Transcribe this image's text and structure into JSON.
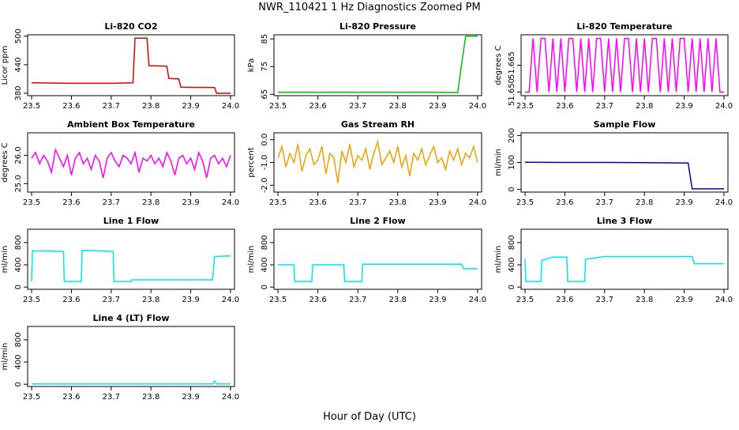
{
  "title": "NWR_110421  1 Hz Diagnostics Zoomed PM",
  "x_label": "Hour of Day (UTC)",
  "chart_data": [
    {
      "type": "line",
      "title": "Li-820 CO2",
      "y_label": "Licor ppm",
      "color": "#e00000",
      "x": [
        23.5,
        23.6,
        23.7,
        23.755,
        23.76,
        23.79,
        23.795,
        23.84,
        23.845,
        23.87,
        23.875,
        23.96,
        23.965,
        24.0
      ],
      "values": [
        402,
        401,
        401,
        402,
        496,
        496,
        438,
        437,
        411,
        410,
        393,
        392,
        380,
        380
      ],
      "xlim": [
        23.49,
        24.01
      ],
      "ylim": [
        375,
        503
      ],
      "yticks": [
        380,
        440,
        500
      ],
      "xticks": [
        23.5,
        23.6,
        23.7,
        23.8,
        23.9,
        {
          "value": 24,
          "label": "24.0"
        }
      ]
    },
    {
      "type": "line",
      "title": "Li-820 Pressure",
      "y_label": "kPa",
      "color": "#00c000",
      "x": [
        23.5,
        23.7,
        23.9,
        23.95,
        23.96,
        23.97,
        24.0
      ],
      "values": [
        65.7,
        65.7,
        65.7,
        65.6,
        76,
        86,
        86
      ],
      "xlim": [
        23.49,
        24.01
      ],
      "ylim": [
        64.5,
        86.5
      ],
      "yticks": [
        65,
        75,
        85
      ],
      "xticks": [
        23.5,
        23.6,
        23.7,
        23.8,
        23.9,
        {
          "value": 24,
          "label": "24.0"
        }
      ]
    },
    {
      "type": "line",
      "title": "Li-820 Temperature",
      "y_label": "degrees C",
      "color": "#ff00ff",
      "x": [
        23.5,
        23.51,
        23.52,
        23.53,
        23.54,
        23.55,
        23.56,
        23.57,
        23.58,
        23.59,
        23.6,
        23.61,
        23.62,
        23.63,
        23.64,
        23.65,
        23.66,
        23.67,
        23.68,
        23.69,
        23.7,
        23.71,
        23.72,
        23.73,
        23.74,
        23.75,
        23.76,
        23.77,
        23.78,
        23.79,
        23.8,
        23.81,
        23.82,
        23.83,
        23.84,
        23.85,
        23.86,
        23.87,
        23.88,
        23.89,
        23.9,
        23.91,
        23.92,
        23.93,
        23.94,
        23.95,
        23.96,
        23.97,
        23.98,
        23.99,
        24.0
      ],
      "values": [
        51.65,
        51.65,
        51.68,
        51.65,
        51.68,
        51.68,
        51.65,
        51.68,
        51.65,
        51.68,
        51.65,
        51.68,
        51.68,
        51.65,
        51.68,
        51.65,
        51.68,
        51.65,
        51.68,
        51.68,
        51.65,
        51.68,
        51.65,
        51.68,
        51.65,
        51.68,
        51.68,
        51.65,
        51.68,
        51.65,
        51.68,
        51.65,
        51.68,
        51.68,
        51.65,
        51.68,
        51.65,
        51.68,
        51.65,
        51.68,
        51.68,
        51.65,
        51.68,
        51.65,
        51.68,
        51.65,
        51.68,
        51.65,
        51.68,
        51.65,
        51.65
      ],
      "xlim": [
        23.49,
        24.01
      ],
      "ylim": [
        51.648,
        51.682
      ],
      "yticks": [
        {
          "value": 51.65,
          "label": "51.650"
        },
        51.665
      ],
      "xticks": [
        23.5,
        23.6,
        23.7,
        23.8,
        23.9,
        {
          "value": 24,
          "label": "24.0"
        }
      ]
    },
    {
      "type": "line",
      "title": "Ambient Box Temperature",
      "y_label": "degrees C",
      "color": "#ff00ff",
      "x": [
        23.5,
        23.51,
        23.52,
        23.53,
        23.54,
        23.55,
        23.56,
        23.57,
        23.58,
        23.59,
        23.6,
        23.61,
        23.62,
        23.63,
        23.64,
        23.65,
        23.66,
        23.67,
        23.68,
        23.69,
        23.7,
        23.71,
        23.72,
        23.73,
        23.74,
        23.75,
        23.76,
        23.77,
        23.78,
        23.79,
        23.8,
        23.81,
        23.82,
        23.83,
        23.84,
        23.85,
        23.86,
        23.87,
        23.88,
        23.89,
        23.9,
        23.91,
        23.92,
        23.93,
        23.94,
        23.95,
        23.96,
        23.97,
        23.98,
        23.99,
        24.0
      ],
      "values": [
        25.9,
        26.1,
        25.7,
        26.0,
        25.8,
        25.4,
        26.2,
        25.9,
        25.6,
        26.0,
        25.3,
        25.9,
        26.1,
        25.7,
        25.9,
        25.5,
        26.0,
        25.8,
        25.2,
        25.9,
        26.1,
        25.8,
        25.6,
        26.0,
        25.9,
        25.7,
        26.1,
        25.4,
        25.9,
        25.8,
        26.0,
        25.7,
        25.9,
        25.6,
        26.1,
        25.8,
        25.3,
        25.9,
        26.0,
        25.7,
        25.9,
        25.5,
        26.1,
        25.8,
        25.2,
        25.9,
        26.0,
        25.7,
        25.9,
        25.6,
        26.0
      ],
      "xlim": [
        23.49,
        24.01
      ],
      "ylim": [
        24.7,
        26.8
      ],
      "yticks": [
        {
          "value": 25,
          "label": "25.0"
        },
        {
          "value": 26,
          "label": "26.0"
        }
      ],
      "xticks": [
        23.5,
        23.6,
        23.7,
        23.8,
        23.9,
        {
          "value": 24,
          "label": "24.0"
        }
      ]
    },
    {
      "type": "line",
      "title": "Gas Stream RH",
      "y_label": "percent",
      "color": "#f0a000",
      "x": [
        23.5,
        23.51,
        23.52,
        23.53,
        23.54,
        23.55,
        23.56,
        23.57,
        23.58,
        23.59,
        23.6,
        23.61,
        23.62,
        23.63,
        23.64,
        23.65,
        23.66,
        23.67,
        23.68,
        23.69,
        23.7,
        23.71,
        23.72,
        23.73,
        23.74,
        23.75,
        23.76,
        23.77,
        23.78,
        23.79,
        23.8,
        23.81,
        23.82,
        23.83,
        23.84,
        23.85,
        23.86,
        23.87,
        23.88,
        23.89,
        23.9,
        23.91,
        23.92,
        23.93,
        23.94,
        23.95,
        23.96,
        23.97,
        23.98,
        23.99,
        24.0
      ],
      "values": [
        -0.8,
        -0.3,
        -1.2,
        -0.6,
        -1.0,
        -0.2,
        -1.4,
        -0.7,
        -0.4,
        -1.1,
        -0.9,
        -0.3,
        -1.5,
        -0.6,
        -0.8,
        -1.9,
        -0.5,
        -1.0,
        -0.2,
        -1.2,
        -0.7,
        -0.9,
        -0.4,
        -1.3,
        -0.6,
        -0.1,
        -1.1,
        -0.8,
        -0.5,
        -1.0,
        -0.3,
        -1.2,
        -0.7,
        -1.6,
        -0.6,
        -0.9,
        -0.4,
        -1.1,
        -0.7,
        -0.3,
        -1.0,
        -0.8,
        -1.3,
        -0.5,
        -0.9,
        -0.4,
        -1.1,
        -0.6,
        -0.8,
        -0.3,
        -1.0
      ],
      "xlim": [
        23.49,
        24.01
      ],
      "ylim": [
        -2.3,
        0.3
      ],
      "yticks": [
        {
          "value": -2,
          "label": "-2.0"
        },
        {
          "value": -1,
          "label": "-1.0"
        },
        {
          "value": 0,
          "label": "0.0"
        }
      ],
      "xticks": [
        23.5,
        23.6,
        23.7,
        23.8,
        23.9,
        {
          "value": 24,
          "label": "24.0"
        }
      ]
    },
    {
      "type": "line",
      "title": "Sample Flow",
      "y_label": "ml/min",
      "color": "#0000c0",
      "x": [
        23.5,
        23.6,
        23.7,
        23.8,
        23.91,
        23.915,
        23.92,
        24.0
      ],
      "values": [
        101,
        100,
        100,
        99,
        98,
        50,
        2,
        2
      ],
      "xlim": [
        23.49,
        24.01
      ],
      "ylim": [
        -10,
        210
      ],
      "yticks": [
        0,
        100,
        200
      ],
      "xticks": [
        23.5,
        23.6,
        23.7,
        23.8,
        23.9,
        {
          "value": 24,
          "label": "24.0"
        }
      ]
    },
    {
      "type": "line",
      "title": "Line 1 Flow",
      "y_label": "ml/min",
      "color": "#00e5ee",
      "x": [
        23.5,
        23.502,
        23.58,
        23.582,
        23.625,
        23.627,
        23.705,
        23.707,
        23.75,
        23.752,
        23.955,
        23.96,
        24.0
      ],
      "values": [
        100,
        650,
        640,
        100,
        100,
        660,
        640,
        100,
        100,
        130,
        130,
        550,
        560
      ],
      "xlim": [
        23.49,
        24.01
      ],
      "ylim": [
        -40,
        1040
      ],
      "yticks": [
        0,
        400,
        800
      ],
      "xticks": [
        23.5,
        23.6,
        23.7,
        23.8,
        23.9,
        {
          "value": 24,
          "label": "24.0"
        }
      ]
    },
    {
      "type": "line",
      "title": "Line 2 Flow",
      "y_label": "ml/min",
      "color": "#00e5ee",
      "x": [
        23.5,
        23.54,
        23.542,
        23.585,
        23.587,
        23.665,
        23.667,
        23.71,
        23.712,
        23.96,
        23.965,
        24.0
      ],
      "values": [
        400,
        400,
        100,
        100,
        400,
        400,
        100,
        100,
        410,
        410,
        330,
        330
      ],
      "xlim": [
        23.49,
        24.01
      ],
      "ylim": [
        -40,
        1040
      ],
      "yticks": [
        0,
        400,
        800
      ],
      "xticks": [
        23.5,
        23.6,
        23.7,
        23.8,
        23.9,
        {
          "value": 24,
          "label": "24.0"
        }
      ]
    },
    {
      "type": "line",
      "title": "Line 3 Flow",
      "y_label": "ml/min",
      "color": "#00e5ee",
      "x": [
        23.5,
        23.502,
        23.54,
        23.542,
        23.57,
        23.605,
        23.607,
        23.65,
        23.652,
        23.7,
        23.92,
        23.925,
        24.0
      ],
      "values": [
        500,
        100,
        100,
        480,
        540,
        540,
        100,
        100,
        500,
        550,
        550,
        420,
        420
      ],
      "xlim": [
        23.49,
        24.01
      ],
      "ylim": [
        -40,
        1040
      ],
      "yticks": [
        0,
        400,
        800
      ],
      "xticks": [
        23.5,
        23.6,
        23.7,
        23.8,
        23.9,
        {
          "value": 24,
          "label": "24.0"
        }
      ]
    },
    {
      "type": "line",
      "title": "Line 4 (LT) Flow",
      "y_label": "ml/min",
      "color": "#00e5ee",
      "x": [
        23.5,
        23.7,
        23.955,
        23.96,
        23.965,
        24.0
      ],
      "values": [
        5,
        5,
        5,
        60,
        5,
        5
      ],
      "xlim": [
        23.49,
        24.01
      ],
      "ylim": [
        -40,
        1040
      ],
      "yticks": [
        0,
        400,
        800
      ],
      "xticks": [
        23.5,
        23.6,
        23.7,
        23.8,
        23.9,
        {
          "value": 24,
          "label": "24.0"
        }
      ]
    }
  ]
}
